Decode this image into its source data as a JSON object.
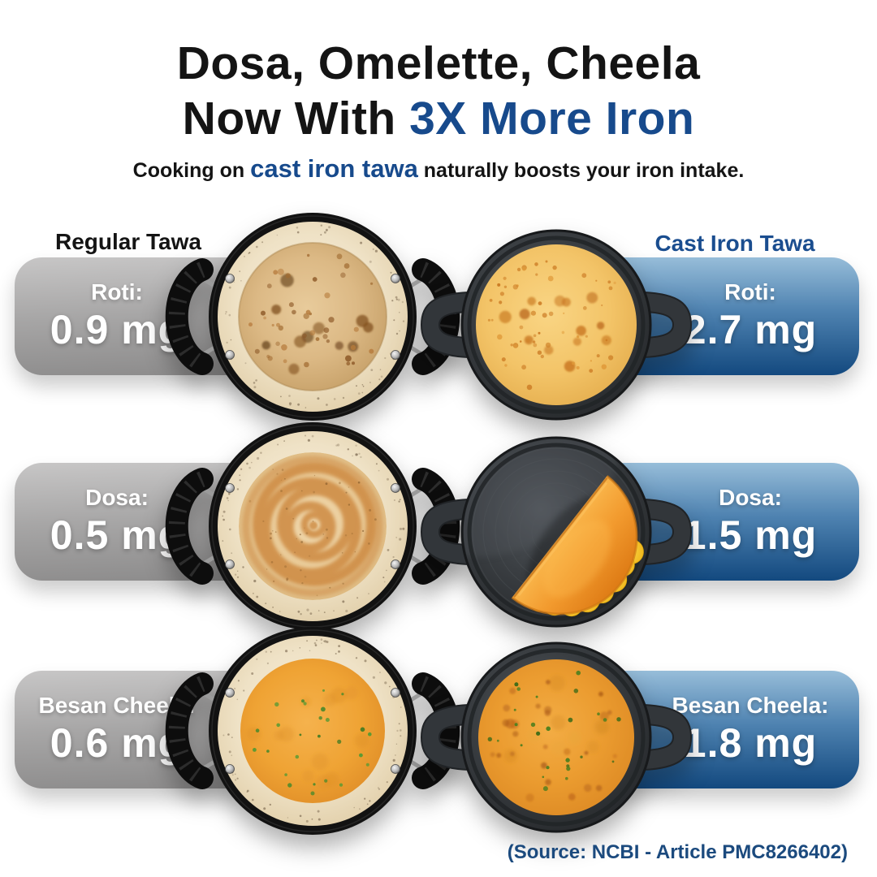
{
  "title": {
    "line1": "Dosa, Omelette, Cheela",
    "line2_prefix": "Now With ",
    "line2_accent": "3X More Iron"
  },
  "subtitle": {
    "prefix": "Cooking on ",
    "accent": "cast iron tawa",
    "suffix": " naturally boosts your iron intake."
  },
  "columns": {
    "regular": "Regular Tawa",
    "cast_iron": "Cast Iron Tawa"
  },
  "rows": [
    {
      "food": "Roti",
      "regular": {
        "label": "Roti:",
        "value": "0.9 mg"
      },
      "cast_iron": {
        "label": "Roti:",
        "value": "2.7 mg"
      }
    },
    {
      "food": "Dosa",
      "regular": {
        "label": "Dosa:",
        "value": "0.5 mg"
      },
      "cast_iron": {
        "label": "Dosa:",
        "value": "1.5 mg"
      }
    },
    {
      "food": "Besan Cheela",
      "regular": {
        "label": "Besan Cheela:",
        "value": "0.6 mg"
      },
      "cast_iron": {
        "label": "Besan Cheela:",
        "value": "1.8 mg"
      }
    }
  ],
  "source": "(Source: NCBI - Article PMC8266402)",
  "colors": {
    "accent_blue": "#174a8c",
    "badge_blue_top": "#97bdd9",
    "badge_blue_bottom": "#13497f",
    "badge_gray_top": "#c7c6c6",
    "badge_gray_bottom": "#8b8a8a",
    "text_dark": "#141414",
    "source_blue": "#1b4a7e"
  },
  "chart_data": {
    "type": "table",
    "title": "Dosa, Omelette, Cheela Now With 3X More Iron",
    "subtitle": "Cooking on cast iron tawa naturally boosts your iron intake.",
    "categories": [
      "Roti",
      "Dosa",
      "Besan Cheela"
    ],
    "unit": "mg iron",
    "series": [
      {
        "name": "Regular Tawa",
        "values": [
          0.9,
          0.5,
          0.6
        ]
      },
      {
        "name": "Cast Iron Tawa",
        "values": [
          2.7,
          1.5,
          1.8
        ]
      }
    ],
    "source": "(Source: NCBI - Article PMC8266402)"
  }
}
